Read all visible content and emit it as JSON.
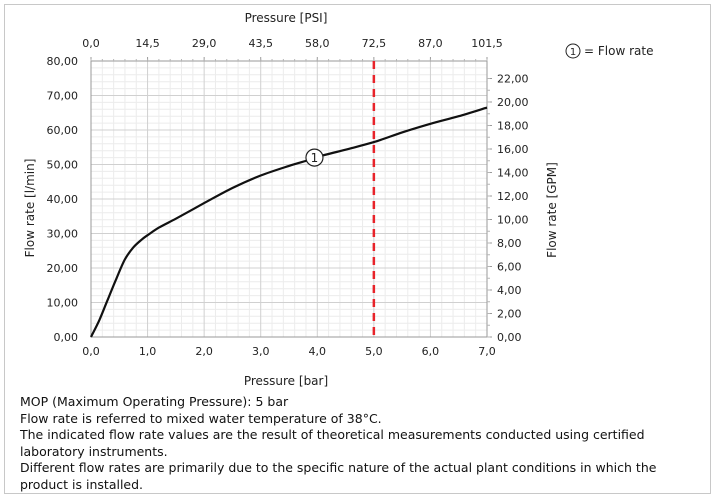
{
  "chart_data": {
    "type": "line",
    "xlabel_bottom": "Pressure [bar]",
    "xlabel_top": "Pressure [PSI]",
    "ylabel_left": "Flow rate [l/min]",
    "ylabel_right": "Flow rate [GPM]",
    "x_ticks_bottom": [
      "0,0",
      "1,0",
      "2,0",
      "3,0",
      "4,0",
      "5,0",
      "6,0",
      "7,0"
    ],
    "x_ticks_top": [
      "0,0",
      "14,5",
      "29,0",
      "43,5",
      "58,0",
      "72,5",
      "87,0",
      "101,5"
    ],
    "y_ticks_left": [
      "0,00",
      "10,00",
      "20,00",
      "30,00",
      "40,00",
      "50,00",
      "60,00",
      "70,00",
      "80,00"
    ],
    "y_ticks_right": [
      "0,00",
      "2,00",
      "4,00",
      "6,00",
      "8,00",
      "10,00",
      "12,00",
      "14,00",
      "16,00",
      "18,00",
      "20,00",
      "22,00"
    ],
    "xlim": [
      0,
      7
    ],
    "ylim": [
      0,
      80
    ],
    "series": [
      {
        "marker_label": "1",
        "color": "#111111",
        "x": [
          0,
          0.15,
          0.3,
          0.45,
          0.6,
          0.75,
          0.9,
          1.0,
          1.2,
          1.5,
          2.0,
          2.5,
          3.0,
          3.5,
          3.85,
          4.0,
          4.5,
          5.0,
          5.5,
          6.0,
          6.5,
          7.0
        ],
        "y": [
          0,
          5,
          11,
          17,
          22.5,
          26,
          28.3,
          29.5,
          31.7,
          34.3,
          38.8,
          43.2,
          46.8,
          49.6,
          51.3,
          52.2,
          54.3,
          56.5,
          59.3,
          61.8,
          64.0,
          66.5
        ]
      }
    ],
    "annotations": [
      {
        "type": "vline",
        "x": 5.0,
        "color": "#e8232a",
        "style": "dashed"
      },
      {
        "type": "marker",
        "text": "1",
        "x": 3.95,
        "y": 52
      }
    ],
    "legend": {
      "placement": "top-right",
      "symbol": "1",
      "text": "= Flow rate"
    },
    "grid": true
  },
  "notes": [
    "MOP (Maximum Operating Pressure): 5 bar",
    "Flow rate is referred to mixed water temperature of 38°C.",
    "The indicated flow rate values are the result of theoretical measurements conducted using certified laboratory instruments.",
    "Different flow rates are primarily due to the specific nature of the actual plant conditions in which the product is installed."
  ]
}
